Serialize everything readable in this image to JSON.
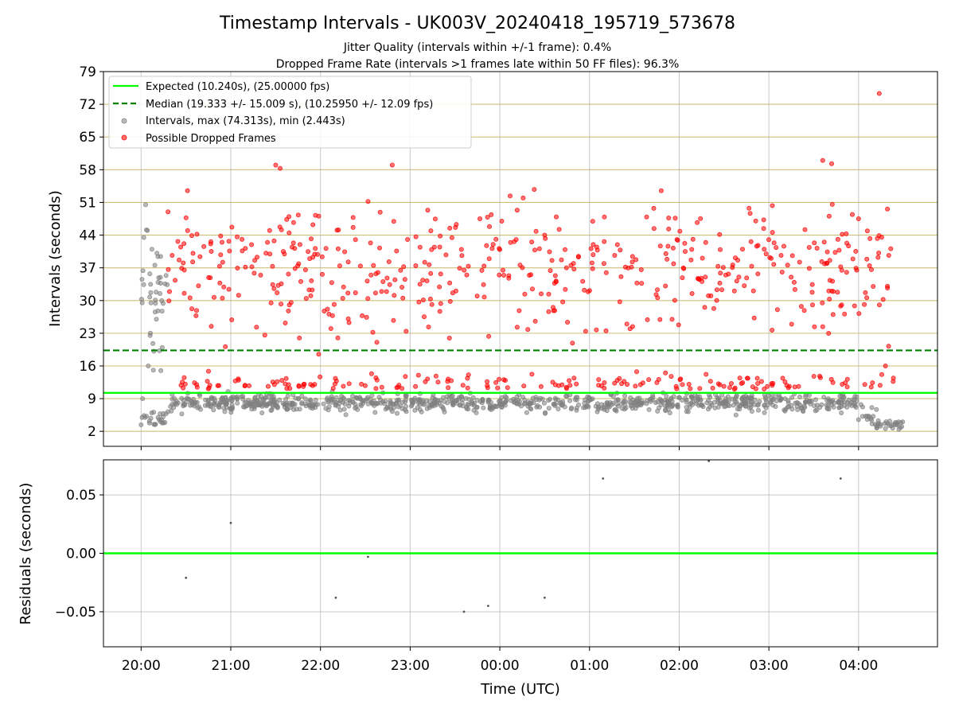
{
  "chart_data": {
    "type": "scatter",
    "title": "Timestamp Intervals - UK003V_20240418_195719_573678",
    "subtitle_1": "Jitter Quality (intervals within +/-1 frame): 0.4%",
    "subtitle_2": "Dropped Frame Rate (intervals >1 frames late within 50 FF files): 96.3%",
    "colors": {
      "expected": "#00ff00",
      "median": "#008000",
      "intervals": "#808080",
      "dropped": "#ff0000",
      "hgrid_top": "#c8b464",
      "vgrid": "#b0b0b0"
    },
    "top_panel": {
      "ylabel": "Intervals (seconds)",
      "ylim": [
        -1.2,
        79
      ],
      "yticks": [
        2,
        9,
        16,
        23,
        30,
        37,
        44,
        51,
        58,
        65,
        72,
        79
      ],
      "ytick_labels": [
        "2",
        "9",
        "16",
        "23",
        "30",
        "37",
        "44",
        "51",
        "58",
        "65",
        "72",
        "79"
      ],
      "xlim_hours": [
        -0.42,
        8.88
      ],
      "expected_value": 10.24,
      "median_value": 19.333,
      "legend_position": "upper-left",
      "legend": [
        {
          "label": "Expected (10.240s), (25.00000 fps)",
          "marker": "solid-line"
        },
        {
          "label": "Median (19.333 +/- 15.009 s), (10.25950 +/- 12.09 fps)",
          "marker": "dashed-line"
        },
        {
          "label": "Intervals, max (74.313s), min (2.443s)",
          "marker": "gray-dot"
        },
        {
          "label": "Possible Dropped Frames",
          "marker": "red-dot"
        }
      ],
      "series": [
        {
          "name": "Intervals, max (74.313s), min (2.443s)",
          "description_of_distribution": "about 1000 points from 20:00 to 04:30, mostly 5.5-10 s; early cluster 20:00-20:20 spans 3-51 s; late cluster 04:05-04:30 drops to 2.4-4 s",
          "sample_points": [
            [
              0.0,
              3.4
            ],
            [
              0.02,
              36.4
            ],
            [
              0.03,
              43.5
            ],
            [
              0.05,
              50.5
            ],
            [
              0.07,
              45.0
            ],
            [
              0.08,
              16.0
            ],
            [
              0.1,
              22.5
            ],
            [
              0.12,
              41.0
            ],
            [
              0.14,
              6.1
            ],
            [
              0.16,
              29.4
            ],
            [
              0.17,
              26.0
            ],
            [
              0.19,
              33.9
            ],
            [
              0.2,
              4.5
            ],
            [
              0.22,
              15.0
            ],
            [
              0.25,
              3.8
            ],
            [
              0.3,
              6.2
            ],
            [
              4.04,
              7.9
            ],
            [
              8.0,
              4.5
            ],
            [
              8.2,
              3.2
            ],
            [
              8.3,
              2.6
            ],
            [
              8.45,
              2.443
            ]
          ]
        },
        {
          "name": "Possible Dropped Frames",
          "description_of_distribution": "about 650 points from 20:15 to 04:30, a lower band at 10-15 s and a wide band at 18-60 s centered near 37 s",
          "sample_points": [
            [
              0.3,
              49.0
            ],
            [
              1.38,
              22.6
            ],
            [
              1.5,
              59.0
            ],
            [
              1.55,
              58.3
            ],
            [
              2.8,
              59.0
            ],
            [
              4.5,
              44.0
            ],
            [
              5.8,
              53.5
            ],
            [
              7.6,
              60.0
            ],
            [
              7.7,
              59.3
            ],
            [
              8.0,
              47.5
            ],
            [
              8.23,
              74.313
            ],
            [
              8.3,
              16.0
            ]
          ]
        }
      ]
    },
    "bottom_panel": {
      "ylabel": "Residuals (seconds)",
      "ylim": [
        -0.08,
        0.08
      ],
      "yticks": [
        -0.05,
        0.0,
        0.05
      ],
      "ytick_labels": [
        "−0.05",
        "0.00",
        "0.05"
      ],
      "zero_line": 0.0,
      "points": [
        {
          "x": 0.5,
          "y": -0.021
        },
        {
          "x": 1.0,
          "y": 0.026
        },
        {
          "x": 2.17,
          "y": -0.038
        },
        {
          "x": 2.53,
          "y": -0.003
        },
        {
          "x": 3.6,
          "y": -0.05
        },
        {
          "x": 3.87,
          "y": -0.045
        },
        {
          "x": 4.5,
          "y": -0.038
        },
        {
          "x": 5.15,
          "y": 0.064
        },
        {
          "x": 6.33,
          "y": 0.079
        },
        {
          "x": 7.8,
          "y": 0.064
        }
      ]
    },
    "xaxis": {
      "xlabel": "Time (UTC)",
      "ticks_hours": [
        0,
        1,
        2,
        3,
        4,
        5,
        6,
        7,
        8
      ],
      "tick_labels": [
        "20:00",
        "21:00",
        "22:00",
        "23:00",
        "00:00",
        "01:00",
        "02:00",
        "03:00",
        "04:00"
      ]
    }
  }
}
